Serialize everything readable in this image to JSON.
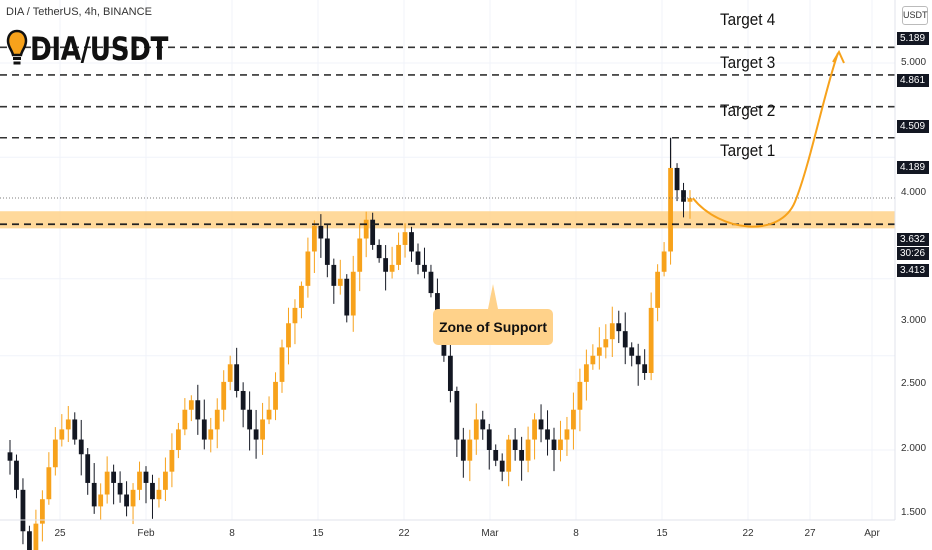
{
  "header": {
    "symbol_line": "DIA / TetherUS, 4h, BINANCE"
  },
  "logo": {
    "text": "DIA/USDT"
  },
  "targets": [
    {
      "label": "Target 4",
      "price": 5.189,
      "tag": "5.189"
    },
    {
      "label": "Target 3",
      "price": 4.861,
      "tag": "4.861"
    },
    {
      "label": "Target 2",
      "price": 4.509,
      "tag": "4.509"
    },
    {
      "label": "Target 1",
      "price": 4.189,
      "tag": "4.189"
    }
  ],
  "support": {
    "label": "Zone of Support",
    "price": 3.413,
    "tag": "3.413",
    "zone_low": 3.38,
    "zone_high": 3.52
  },
  "current": {
    "price": 3.632,
    "tag": "3.632",
    "countdown": "30:26"
  },
  "axis": {
    "currency_badge": "USDT",
    "y_ticks": [
      "5.000",
      "4.000",
      "3.000",
      "2.500",
      "2.000",
      "1.500"
    ]
  },
  "x_ticks": [
    "25",
    "Feb",
    "8",
    "15",
    "22",
    "Mar",
    "8",
    "15",
    "22",
    "27",
    "Apr"
  ],
  "colors": {
    "candle_up": "#f7a21b",
    "candle_down": "#131722",
    "zone": "#ffd28a",
    "arrow": "#f7a21b"
  },
  "chart_data": {
    "type": "candlestick",
    "symbol": "DIA / TetherUS",
    "interval": "4h",
    "exchange": "BINANCE",
    "yscale": "log",
    "ylim": [
      1.45,
      5.6
    ],
    "closes": [
      1.95,
      1.82,
      1.65,
      1.55,
      1.68,
      1.78,
      1.92,
      2.05,
      2.1,
      2.15,
      2.05,
      1.98,
      1.85,
      1.75,
      1.8,
      1.9,
      1.85,
      1.8,
      1.75,
      1.82,
      1.9,
      1.85,
      1.78,
      1.82,
      1.9,
      2.0,
      2.1,
      2.2,
      2.25,
      2.15,
      2.05,
      2.1,
      2.2,
      2.35,
      2.45,
      2.3,
      2.2,
      2.1,
      2.05,
      2.15,
      2.2,
      2.35,
      2.55,
      2.7,
      2.8,
      2.95,
      3.2,
      3.4,
      3.3,
      3.1,
      2.95,
      3.0,
      2.75,
      3.05,
      3.3,
      3.45,
      3.25,
      3.15,
      3.05,
      3.1,
      3.25,
      3.35,
      3.2,
      3.1,
      3.05,
      2.9,
      2.7,
      2.5,
      2.3,
      2.05,
      1.95,
      2.05,
      2.15,
      2.1,
      2.0,
      1.95,
      1.9,
      2.05,
      2.0,
      1.95,
      2.05,
      2.15,
      2.1,
      2.05,
      2.0,
      2.05,
      2.1,
      2.2,
      2.35,
      2.45,
      2.5,
      2.55,
      2.6,
      2.7,
      2.65,
      2.55,
      2.5,
      2.45,
      2.4,
      2.8,
      3.05,
      3.2,
      3.9,
      3.7,
      3.6,
      3.63
    ]
  }
}
